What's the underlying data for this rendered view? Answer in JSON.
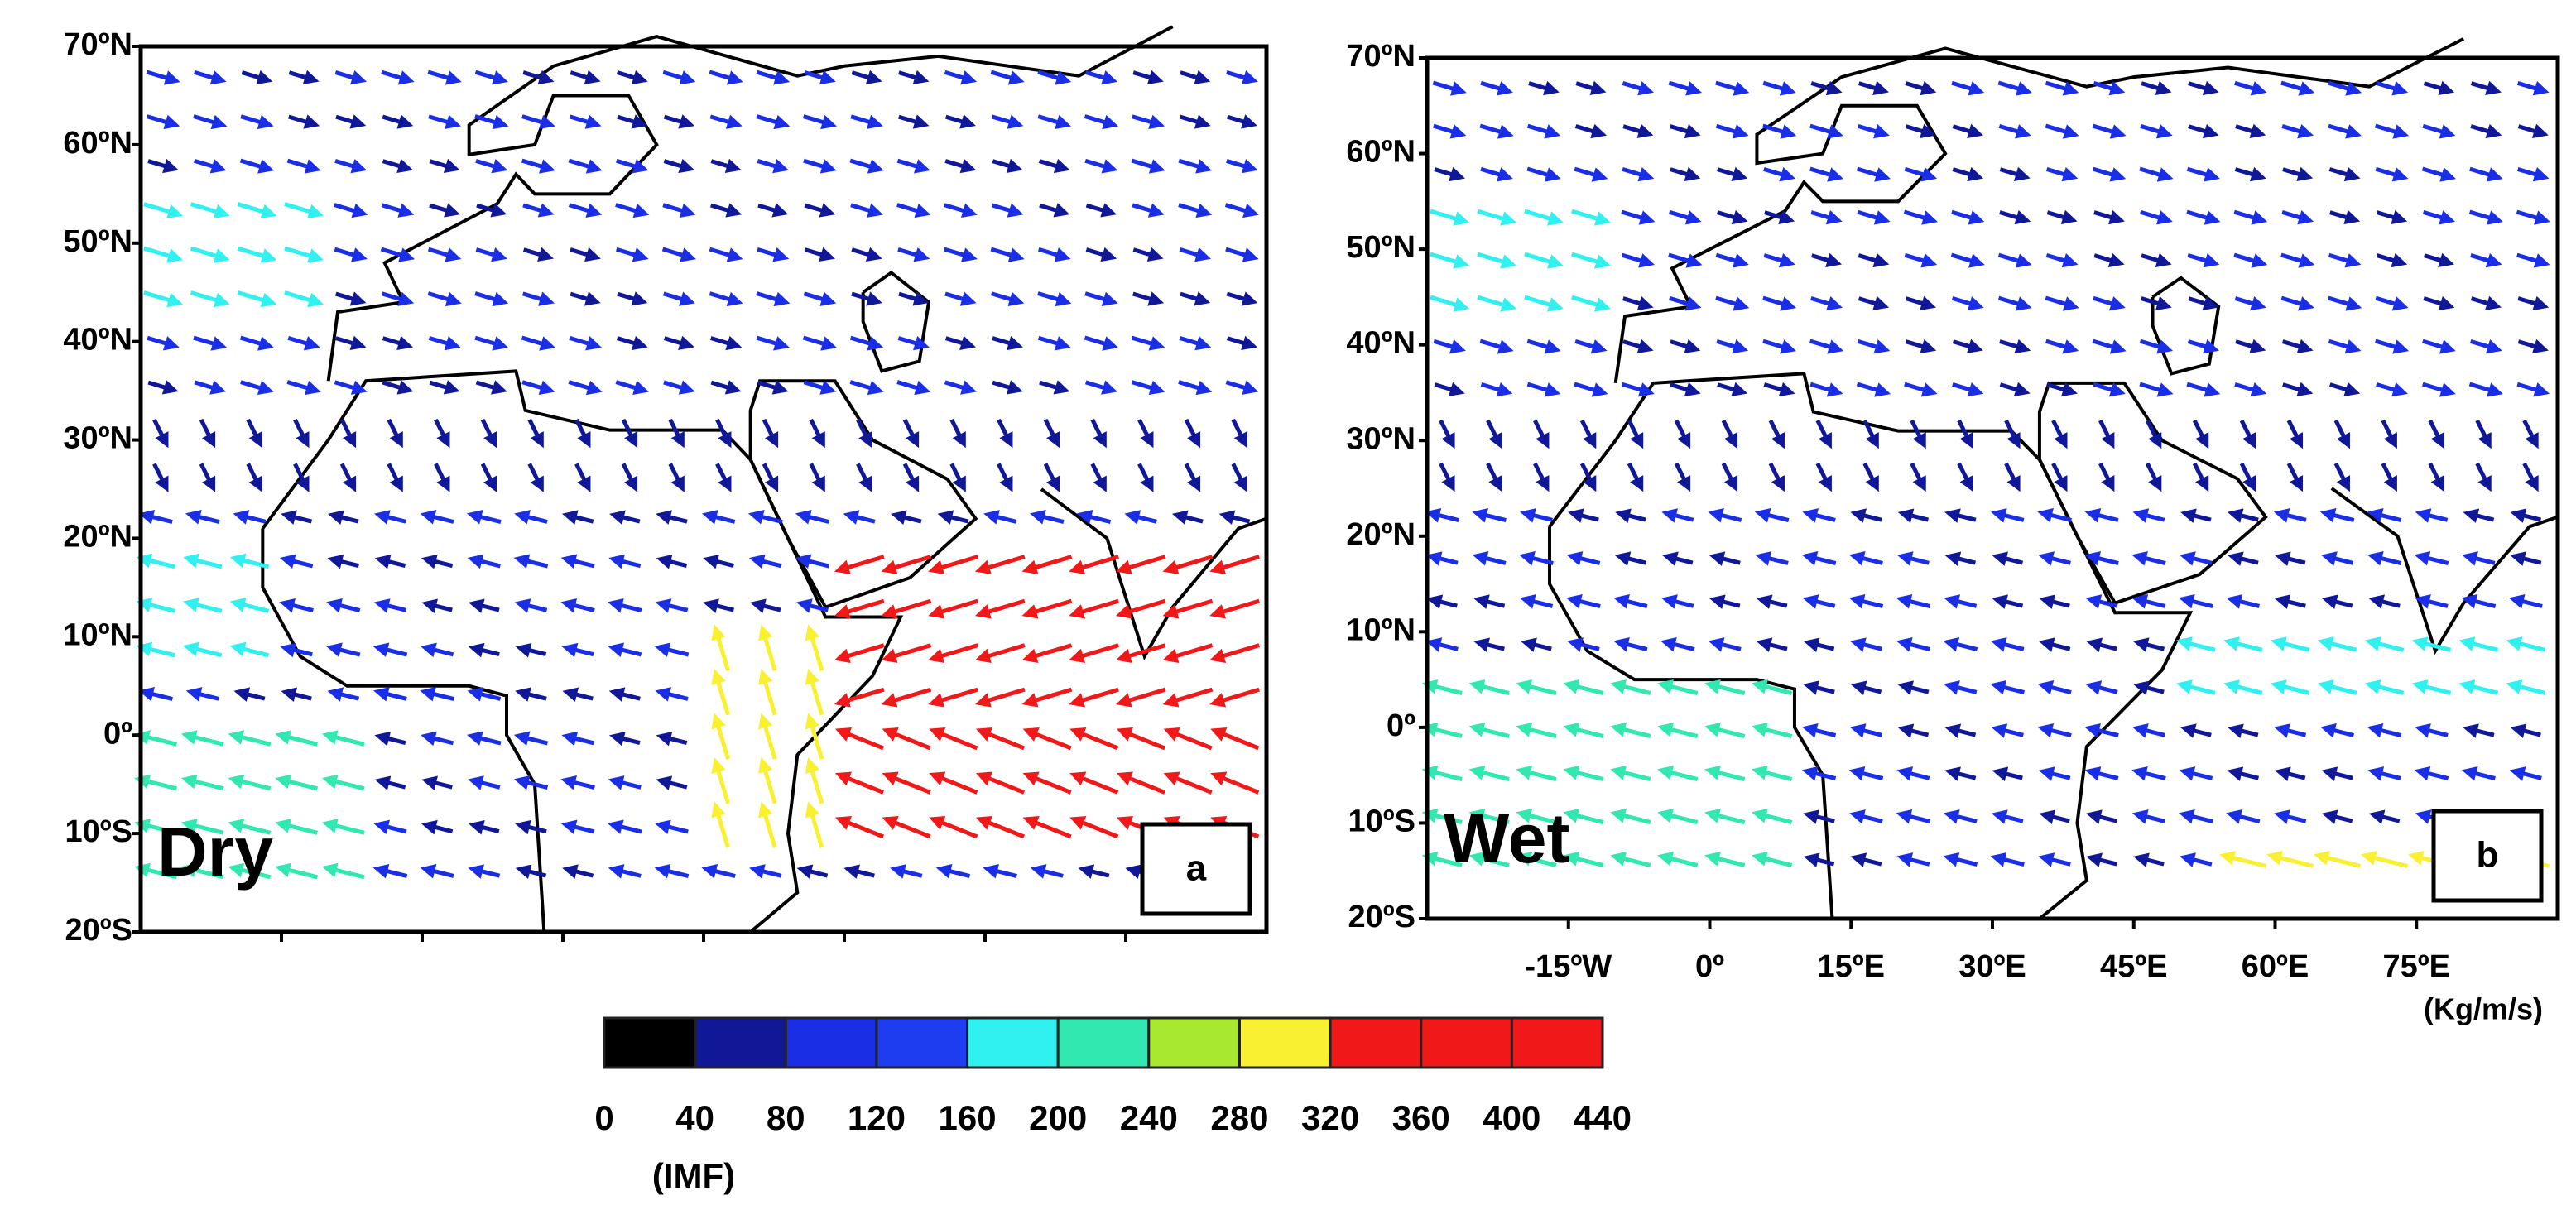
{
  "panels": [
    {
      "label": "Dry",
      "letter": "a"
    },
    {
      "label": "Wet",
      "letter": "b"
    }
  ],
  "lat_labels": [
    "70ºN",
    "60ºN",
    "50ºN",
    "40ºN",
    "30ºN",
    "20ºN",
    "10ºN",
    "0º",
    "10ºS",
    "20ºS"
  ],
  "lon_labels": [
    "-15ºW",
    "0º",
    "15ºE",
    "30ºE",
    "45ºE",
    "60ºE",
    "75ºE"
  ],
  "units": "(Kg/m/s)",
  "colorbar": {
    "ticks": [
      0,
      40,
      80,
      120,
      160,
      200,
      240,
      280,
      320,
      360,
      400,
      440
    ],
    "colors": [
      "#000000",
      "#101898",
      "#1a2ee6",
      "#1e3cf0",
      "#30f0f0",
      "#30e8b0",
      "#a8e830",
      "#f8f030",
      "#f01818",
      "#f01818",
      "#f01818"
    ],
    "label": "(IMF)"
  }
}
